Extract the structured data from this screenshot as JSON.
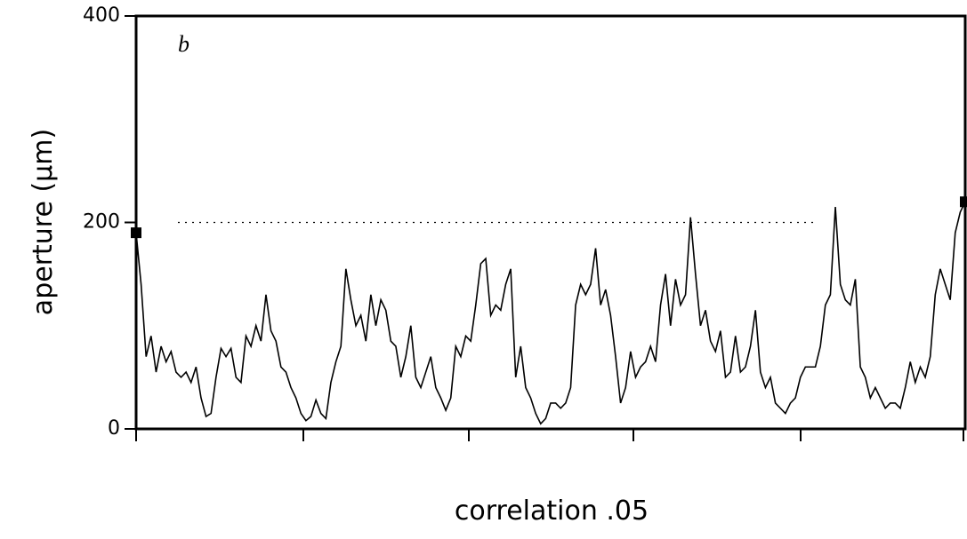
{
  "chart_data": {
    "type": "line",
    "annotation": "b",
    "x_label": "correlation .05",
    "y_label": "aperture (µm)",
    "color": "#000000",
    "ylim": [
      0,
      400
    ],
    "yticks": [
      0,
      200,
      400
    ],
    "reference_line": 200,
    "end_markers": true,
    "values": [
      190,
      140,
      70,
      90,
      55,
      80,
      65,
      75,
      55,
      50,
      55,
      45,
      60,
      30,
      12,
      15,
      50,
      78,
      70,
      78,
      50,
      45,
      90,
      80,
      100,
      85,
      130,
      95,
      85,
      60,
      55,
      40,
      30,
      15,
      8,
      12,
      28,
      15,
      10,
      45,
      65,
      80,
      155,
      125,
      100,
      110,
      85,
      130,
      100,
      125,
      115,
      85,
      80,
      50,
      70,
      100,
      50,
      40,
      55,
      70,
      40,
      30,
      18,
      30,
      80,
      70,
      90,
      85,
      120,
      160,
      165,
      110,
      120,
      115,
      140,
      155,
      50,
      80,
      40,
      30,
      15,
      5,
      10,
      25,
      25,
      20,
      25,
      40,
      120,
      140,
      130,
      140,
      175,
      120,
      135,
      110,
      70,
      25,
      40,
      75,
      50,
      60,
      65,
      80,
      65,
      120,
      150,
      100,
      145,
      120,
      130,
      205,
      150,
      100,
      115,
      85,
      75,
      95,
      50,
      55,
      90,
      55,
      60,
      80,
      115,
      55,
      40,
      50,
      25,
      20,
      15,
      25,
      30,
      50,
      60,
      60,
      60,
      80,
      120,
      130,
      215,
      140,
      125,
      120,
      145,
      60,
      50,
      30,
      40,
      30,
      20,
      25,
      25,
      20,
      40,
      65,
      45,
      60,
      50,
      70,
      130,
      155,
      140,
      125,
      190,
      210,
      220
    ]
  }
}
